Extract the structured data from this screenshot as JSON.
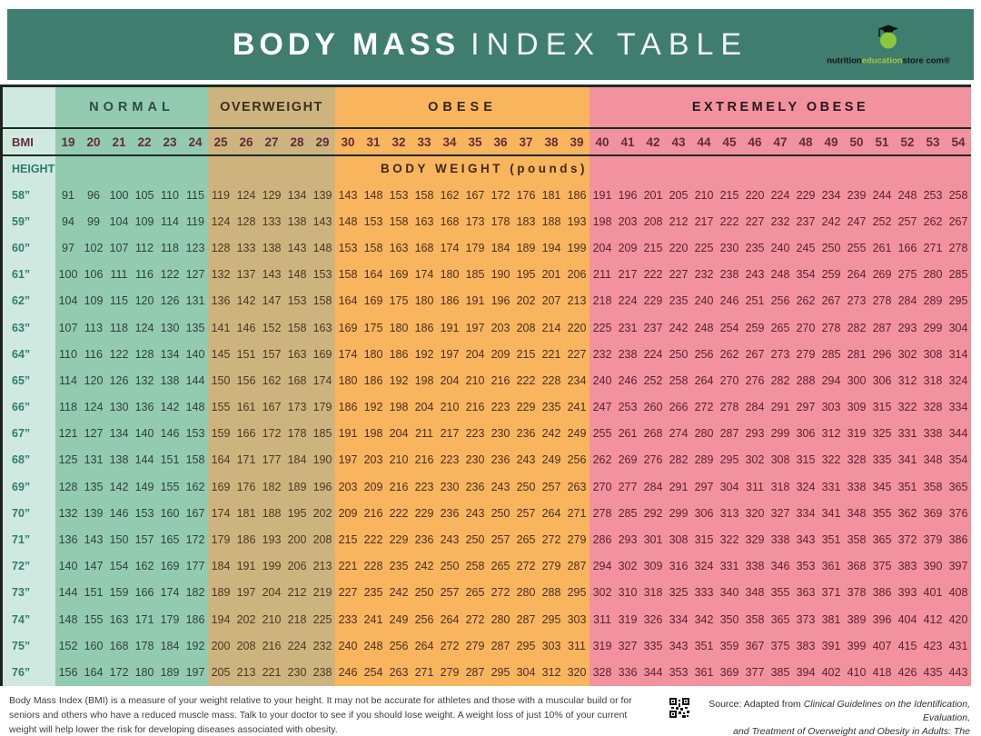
{
  "header": {
    "title_bold": "BODY MASS",
    "title_light": "INDEX TABLE",
    "bg_color": "#3F7D6F",
    "logo": {
      "apple_color": "#8DC63E",
      "cap_color": "#121212",
      "brand_parts": [
        {
          "text": "nutrition",
          "color": "#141414"
        },
        {
          "text": "education",
          "color": "#A6C838"
        },
        {
          "text": "store com®",
          "color": "#141414"
        }
      ]
    }
  },
  "chart_data": {
    "type": "table",
    "title": "BODY MASS INDEX TABLE",
    "bmi_label": "BMI",
    "height_label": "HEIGHT",
    "cell_label": "BODY WEIGHT (pounds)",
    "bmi_values": [
      19,
      20,
      21,
      22,
      23,
      24,
      25,
      26,
      27,
      28,
      29,
      30,
      31,
      32,
      33,
      34,
      35,
      36,
      37,
      38,
      39,
      40,
      41,
      42,
      43,
      44,
      45,
      46,
      47,
      48,
      49,
      50,
      51,
      52,
      53,
      54
    ],
    "bmi_text_color": "#622C38",
    "rule_color": "#1C2B27",
    "left_col": {
      "bg": "#CFE9E1",
      "text_color": "#2E7B6C"
    },
    "bands": [
      {
        "label": "NORMAL",
        "bmi_range": [
          19,
          24
        ],
        "columns": 6,
        "bg": "#92CBB1",
        "label_color": "#2F4C42",
        "text_color": "#30403A"
      },
      {
        "label": "OVERWEIGHT",
        "bmi_range": [
          25,
          29
        ],
        "columns": 5,
        "bg": "#CDB47E",
        "label_color": "#3A301B",
        "text_color": "#493822"
      },
      {
        "label": "OBESE",
        "bmi_range": [
          30,
          39
        ],
        "columns": 10,
        "bg": "#F9B55E",
        "label_color": "#36261A",
        "text_color": "#4A2E20"
      },
      {
        "label": "EXTREMELY OBESE",
        "bmi_range": [
          40,
          54
        ],
        "columns": 15,
        "bg": "#F2929F",
        "label_color": "#29171E",
        "text_color": "#5A2130"
      }
    ],
    "rows": [
      {
        "height": "58”",
        "weights": [
          91,
          96,
          100,
          105,
          110,
          115,
          119,
          124,
          129,
          134,
          139,
          143,
          148,
          153,
          158,
          162,
          167,
          172,
          176,
          181,
          186,
          191,
          196,
          201,
          205,
          210,
          215,
          220,
          224,
          229,
          234,
          239,
          244,
          248,
          253,
          258
        ]
      },
      {
        "height": "59”",
        "weights": [
          94,
          99,
          104,
          109,
          114,
          119,
          124,
          128,
          133,
          138,
          143,
          148,
          153,
          158,
          163,
          168,
          173,
          178,
          183,
          188,
          193,
          198,
          203,
          208,
          212,
          217,
          222,
          227,
          232,
          237,
          242,
          247,
          252,
          257,
          262,
          267
        ]
      },
      {
        "height": "60”",
        "weights": [
          97,
          102,
          107,
          112,
          118,
          123,
          128,
          133,
          138,
          143,
          148,
          153,
          158,
          163,
          168,
          174,
          179,
          184,
          189,
          194,
          199,
          204,
          209,
          215,
          220,
          225,
          230,
          235,
          240,
          245,
          250,
          255,
          261,
          166,
          271,
          278
        ]
      },
      {
        "height": "61”",
        "weights": [
          100,
          106,
          111,
          116,
          122,
          127,
          132,
          137,
          143,
          148,
          153,
          158,
          164,
          169,
          174,
          180,
          185,
          190,
          195,
          201,
          206,
          211,
          217,
          222,
          227,
          232,
          238,
          243,
          248,
          354,
          259,
          264,
          269,
          275,
          280,
          285
        ]
      },
      {
        "height": "62”",
        "weights": [
          104,
          109,
          115,
          120,
          126,
          131,
          136,
          142,
          147,
          153,
          158,
          164,
          169,
          175,
          180,
          186,
          191,
          196,
          202,
          207,
          213,
          218,
          224,
          229,
          235,
          240,
          246,
          251,
          256,
          262,
          267,
          273,
          278,
          284,
          289,
          295
        ]
      },
      {
        "height": "63”",
        "weights": [
          107,
          113,
          118,
          124,
          130,
          135,
          141,
          146,
          152,
          158,
          163,
          169,
          175,
          180,
          186,
          191,
          197,
          203,
          208,
          214,
          220,
          225,
          231,
          237,
          242,
          248,
          254,
          259,
          265,
          270,
          278,
          282,
          287,
          293,
          299,
          304
        ]
      },
      {
        "height": "64”",
        "weights": [
          110,
          116,
          122,
          128,
          134,
          140,
          145,
          151,
          157,
          163,
          169,
          174,
          180,
          186,
          192,
          197,
          204,
          209,
          215,
          221,
          227,
          232,
          238,
          224,
          250,
          256,
          262,
          267,
          273,
          279,
          285,
          281,
          296,
          302,
          308,
          314
        ]
      },
      {
        "height": "65”",
        "weights": [
          114,
          120,
          126,
          132,
          138,
          144,
          150,
          156,
          162,
          168,
          174,
          180,
          186,
          192,
          198,
          204,
          210,
          216,
          222,
          228,
          234,
          240,
          246,
          252,
          258,
          264,
          270,
          276,
          282,
          288,
          294,
          300,
          306,
          312,
          318,
          324
        ]
      },
      {
        "height": "66”",
        "weights": [
          118,
          124,
          130,
          136,
          142,
          148,
          155,
          161,
          167,
          173,
          179,
          186,
          192,
          198,
          204,
          210,
          216,
          223,
          229,
          235,
          241,
          247,
          253,
          260,
          266,
          272,
          278,
          284,
          291,
          297,
          303,
          309,
          315,
          322,
          328,
          334
        ]
      },
      {
        "height": "67”",
        "weights": [
          121,
          127,
          134,
          140,
          146,
          153,
          159,
          166,
          172,
          178,
          185,
          191,
          198,
          204,
          211,
          217,
          223,
          230,
          236,
          242,
          249,
          255,
          261,
          268,
          274,
          280,
          287,
          293,
          299,
          306,
          312,
          319,
          325,
          331,
          338,
          344
        ]
      },
      {
        "height": "68”",
        "weights": [
          125,
          131,
          138,
          144,
          151,
          158,
          164,
          171,
          177,
          184,
          190,
          197,
          203,
          210,
          216,
          223,
          230,
          236,
          243,
          249,
          256,
          262,
          269,
          276,
          282,
          289,
          295,
          302,
          308,
          315,
          322,
          328,
          335,
          341,
          348,
          354
        ]
      },
      {
        "height": "69”",
        "weights": [
          128,
          135,
          142,
          149,
          155,
          162,
          169,
          176,
          182,
          189,
          196,
          203,
          209,
          216,
          223,
          230,
          236,
          243,
          250,
          257,
          263,
          270,
          277,
          284,
          291,
          297,
          304,
          311,
          318,
          324,
          331,
          338,
          345,
          351,
          358,
          365
        ]
      },
      {
        "height": "70”",
        "weights": [
          132,
          139,
          146,
          153,
          160,
          167,
          174,
          181,
          188,
          195,
          202,
          209,
          216,
          222,
          229,
          236,
          243,
          250,
          257,
          264,
          271,
          278,
          285,
          292,
          299,
          306,
          313,
          320,
          327,
          334,
          341,
          348,
          355,
          362,
          369,
          376
        ]
      },
      {
        "height": "71”",
        "weights": [
          136,
          143,
          150,
          157,
          165,
          172,
          179,
          186,
          193,
          200,
          208,
          215,
          222,
          229,
          236,
          243,
          250,
          257,
          265,
          272,
          279,
          286,
          293,
          301,
          308,
          315,
          322,
          329,
          338,
          343,
          351,
          358,
          365,
          372,
          379,
          386
        ]
      },
      {
        "height": "72”",
        "weights": [
          140,
          147,
          154,
          162,
          169,
          177,
          184,
          191,
          199,
          206,
          213,
          221,
          228,
          235,
          242,
          250,
          258,
          265,
          272,
          279,
          287,
          294,
          302,
          309,
          316,
          324,
          331,
          338,
          346,
          353,
          361,
          368,
          375,
          383,
          390,
          397
        ]
      },
      {
        "height": "73”",
        "weights": [
          144,
          151,
          159,
          166,
          174,
          182,
          189,
          197,
          204,
          212,
          219,
          227,
          235,
          242,
          250,
          257,
          265,
          272,
          280,
          288,
          295,
          302,
          310,
          318,
          325,
          333,
          340,
          348,
          355,
          363,
          371,
          378,
          386,
          393,
          401,
          408
        ]
      },
      {
        "height": "74”",
        "weights": [
          148,
          155,
          163,
          171,
          179,
          186,
          194,
          202,
          210,
          218,
          225,
          233,
          241,
          249,
          256,
          264,
          272,
          280,
          287,
          295,
          303,
          311,
          319,
          326,
          334,
          342,
          350,
          358,
          365,
          373,
          381,
          389,
          396,
          404,
          412,
          420
        ]
      },
      {
        "height": "75”",
        "weights": [
          152,
          160,
          168,
          178,
          184,
          192,
          200,
          208,
          216,
          224,
          232,
          240,
          248,
          256,
          264,
          272,
          279,
          287,
          295,
          303,
          311,
          319,
          327,
          335,
          343,
          351,
          359,
          367,
          375,
          383,
          391,
          399,
          407,
          415,
          423,
          431
        ]
      },
      {
        "height": "76”",
        "weights": [
          156,
          164,
          172,
          180,
          189,
          197,
          205,
          213,
          221,
          230,
          238,
          246,
          254,
          263,
          271,
          279,
          287,
          295,
          304,
          312,
          320,
          328,
          336,
          344,
          353,
          361,
          369,
          377,
          385,
          394,
          402,
          410,
          418,
          426,
          435,
          443
        ]
      }
    ]
  },
  "footer": {
    "disclaimer": "Body Mass Index (BMI) is a measure of your weight relative to your height. It may not be accurate for athletes and those with a muscular build or for seniors and others who have a reduced muscle mass. Talk to your doctor to see if you should lose weight. A weight loss of just 10% of your current weight will help lower the risk for developing diseases associated with obesity.",
    "source_prefix": "Source:  Adapted from ",
    "source_italic_1": "Clinical Guidelines on the Identification, Evaluation,",
    "source_italic_2": "and Treatment of Overweight and Obesity in Adults: The Evidence Report."
  }
}
